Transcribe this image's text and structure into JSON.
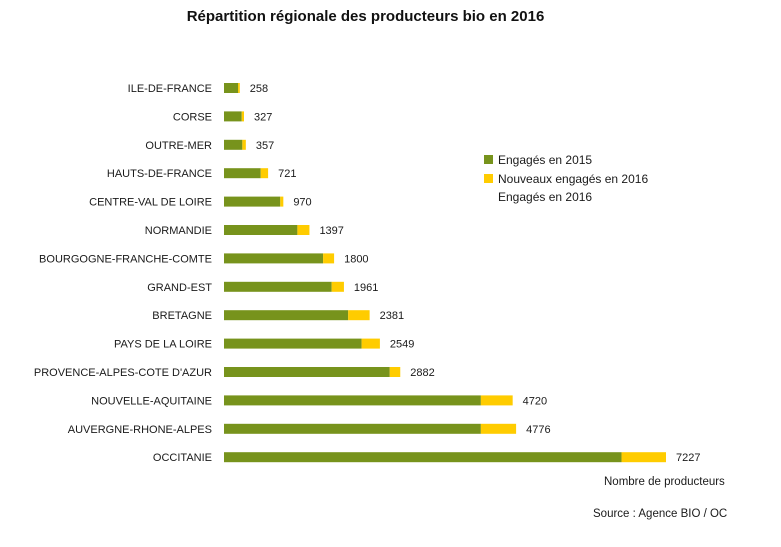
{
  "colors": {
    "engaged_2015": "#77931C",
    "new_2016": "#FFCC00"
  },
  "chart_data": {
    "type": "bar",
    "orientation": "horizontal",
    "stacked": true,
    "title": "Répartition régionale des producteurs bio en 2016",
    "xlabel": "Nombre de producteurs",
    "source": "Source : Agence BIO / OC",
    "categories": [
      "ILE-DE-FRANCE",
      "CORSE",
      "OUTRE-MER",
      "HAUTS-DE-FRANCE",
      "CENTRE-VAL DE LOIRE",
      "NORMANDIE",
      "BOURGOGNE-FRANCHE-COMTE",
      "GRAND-EST",
      "BRETAGNE",
      "PAYS DE LA LOIRE",
      "PROVENCE-ALPES-COTE D'AZUR",
      "NOUVELLE-AQUITAINE",
      "AUVERGNE-RHONE-ALPES",
      "OCCITANIE"
    ],
    "totals": [
      258,
      327,
      357,
      721,
      970,
      1397,
      1800,
      1961,
      2381,
      2549,
      2882,
      4720,
      4776,
      7227
    ],
    "series": [
      {
        "name": "Engagés en 2015",
        "values": [
          230,
          290,
          300,
          600,
          920,
          1200,
          1620,
          1760,
          2030,
          2250,
          2710,
          4200,
          4200,
          6500
        ]
      },
      {
        "name": "Nouveaux engagés en 2016",
        "values": [
          28,
          37,
          57,
          121,
          50,
          197,
          180,
          201,
          351,
          299,
          172,
          520,
          576,
          727
        ]
      }
    ],
    "legend": {
      "position": "right",
      "extra_text": "Engagés en 2016"
    },
    "xlim": [
      0,
      8000
    ],
    "grid": false
  }
}
